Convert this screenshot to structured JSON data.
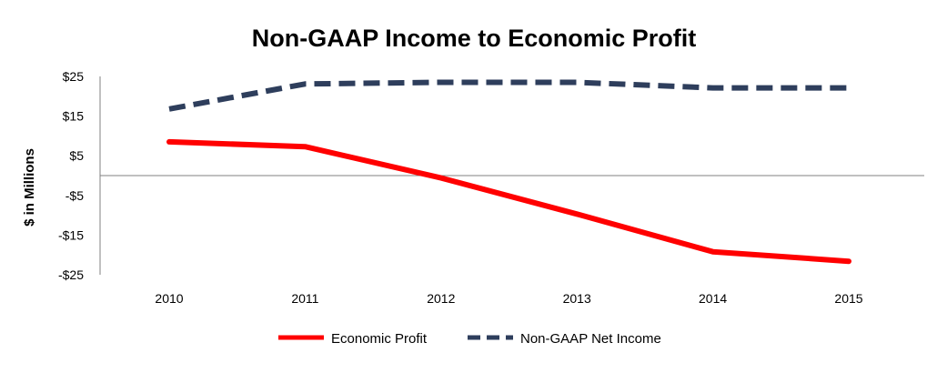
{
  "chart_data": {
    "type": "line",
    "title": "Non-GAAP Income to Economic Profit",
    "xlabel": "",
    "ylabel": "$ in Millions",
    "categories": [
      "2010",
      "2011",
      "2012",
      "2013",
      "2014",
      "2015"
    ],
    "ylim": [
      -25,
      25
    ],
    "yticks": [
      25,
      15,
      5,
      -5,
      -15,
      -25
    ],
    "ytick_labels": [
      "$25",
      "$15",
      "$5",
      "-$5",
      "-$15",
      "-$25"
    ],
    "series": [
      {
        "name": "Economic Profit",
        "values": [
          8.5,
          7.3,
          -0.6,
          -9.7,
          -19.2,
          -21.6
        ],
        "color": "#ff0000",
        "style": "solid"
      },
      {
        "name": "Non-GAAP Net Income",
        "values": [
          16.8,
          23.1,
          23.5,
          23.5,
          22.1,
          22.1
        ],
        "color": "#2e3e5c",
        "style": "dashed"
      }
    ],
    "grid": false,
    "zero_line": true,
    "legend_position": "bottom"
  }
}
